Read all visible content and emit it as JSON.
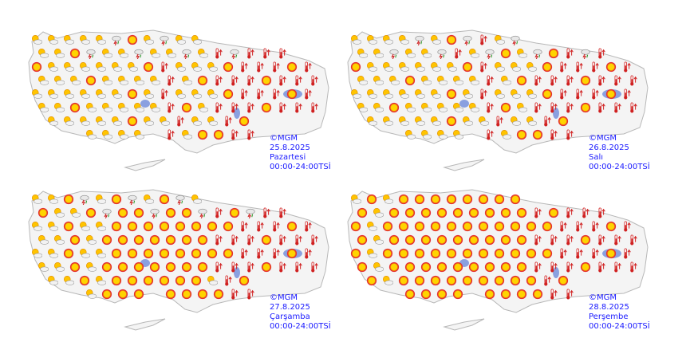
{
  "panels": [
    {
      "copyright": "©MGM",
      "date": "25.8.2025",
      "day": "Pazartesi",
      "hours": "00:00-24:00TSİ"
    },
    {
      "copyright": "©MGM",
      "date": "26.8.2025",
      "day": "Salı",
      "hours": "00:00-24:00TSİ"
    },
    {
      "copyright": "©MGM",
      "date": "27.8.2025",
      "day": "Çarşamba",
      "hours": "00:00-24:00TSİ"
    },
    {
      "copyright": "©MGM",
      "date": "28.8.2025",
      "day": "Perşembe",
      "hours": "00:00-24:00TSİ"
    }
  ]
}
